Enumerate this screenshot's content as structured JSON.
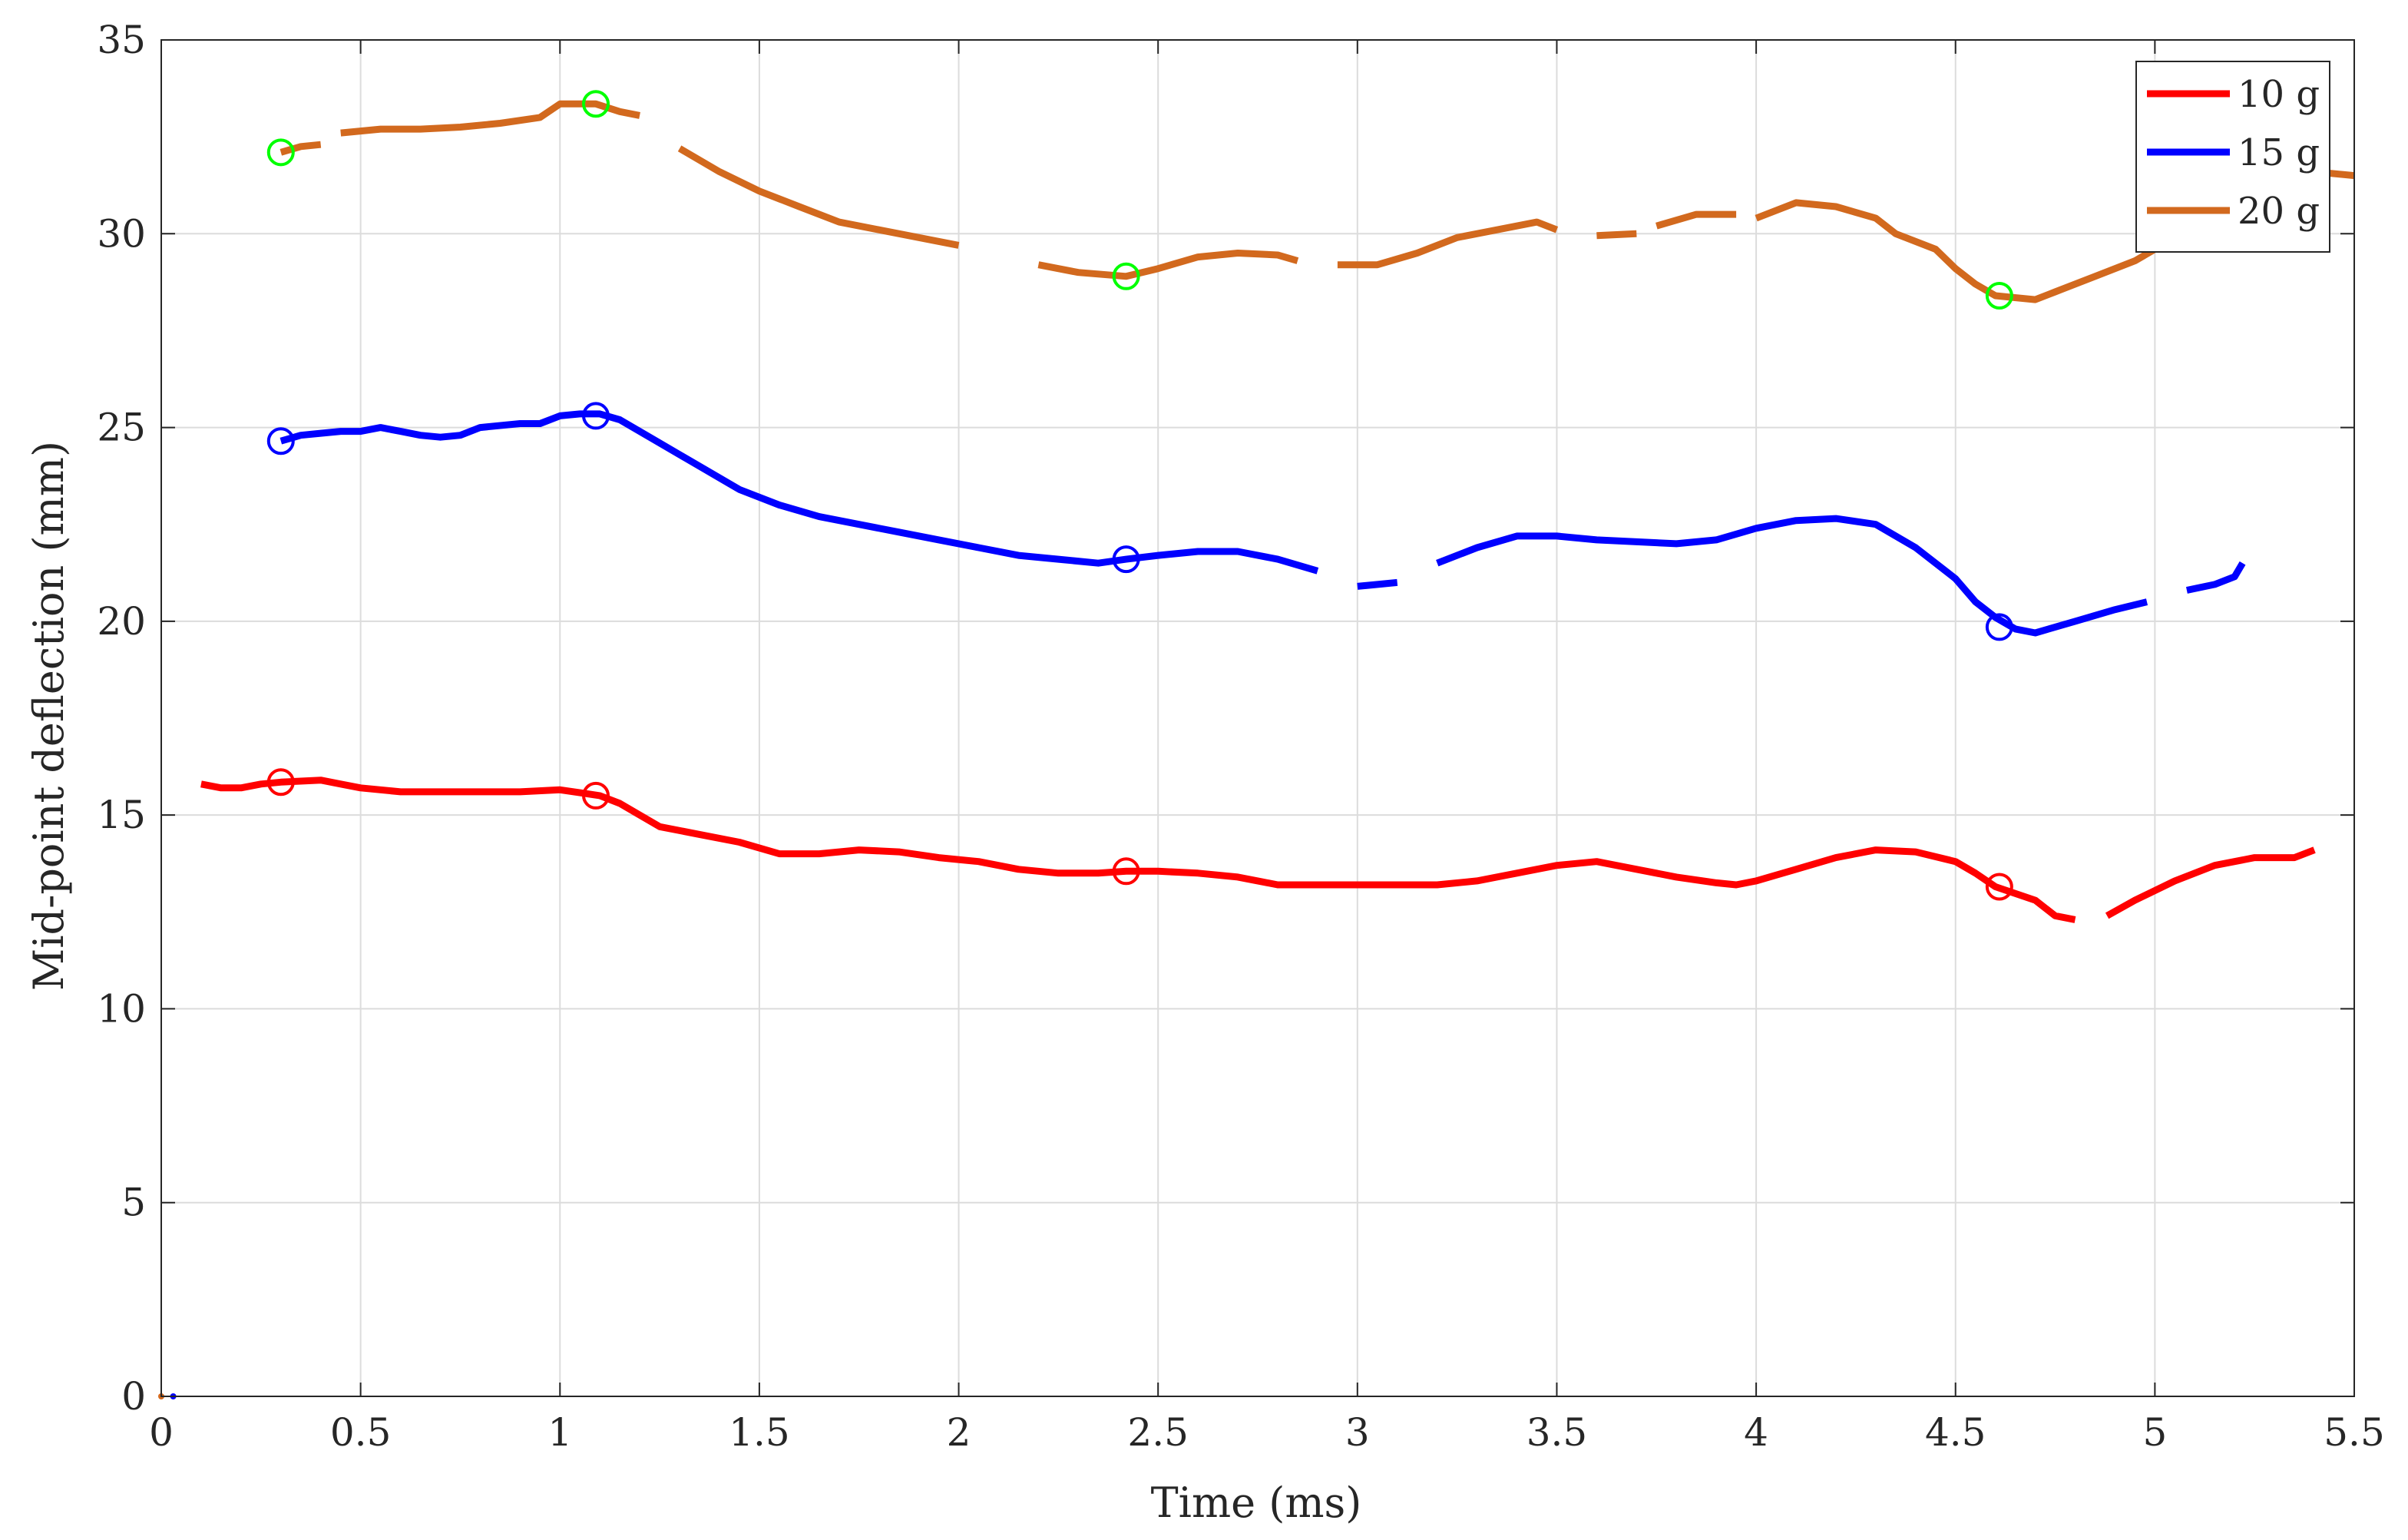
{
  "chart_data": {
    "type": "line",
    "xlabel": "Time (ms)",
    "ylabel": "Mid-point deflection (mm)",
    "xlim": [
      0,
      5.5
    ],
    "ylim": [
      0,
      35
    ],
    "xticks": [
      0,
      0.5,
      1,
      1.5,
      2,
      2.5,
      3,
      3.5,
      4,
      4.5,
      5,
      5.5
    ],
    "xtick_labels": [
      "0",
      "0.5",
      "1",
      "1.5",
      "2",
      "2.5",
      "3",
      "3.5",
      "4",
      "4.5",
      "5",
      "5.5"
    ],
    "yticks": [
      0,
      5,
      10,
      15,
      20,
      25,
      30,
      35
    ],
    "ytick_labels": [
      "0",
      "5",
      "10",
      "15",
      "20",
      "25",
      "30",
      "35"
    ],
    "grid": true,
    "legend_position": "top-right",
    "series": [
      {
        "name": "10 g",
        "color": "#ff0000",
        "segments": [
          [
            [
              0.1,
              15.8
            ],
            [
              0.15,
              15.7
            ],
            [
              0.2,
              15.7
            ],
            [
              0.25,
              15.8
            ],
            [
              0.3,
              15.85
            ],
            [
              0.4,
              15.9
            ],
            [
              0.45,
              15.8
            ],
            [
              0.5,
              15.7
            ],
            [
              0.6,
              15.6
            ],
            [
              0.7,
              15.6
            ],
            [
              0.8,
              15.6
            ],
            [
              0.9,
              15.6
            ],
            [
              1.0,
              15.65
            ],
            [
              1.1,
              15.5
            ],
            [
              1.15,
              15.3
            ],
            [
              1.2,
              15.0
            ],
            [
              1.25,
              14.7
            ],
            [
              1.35,
              14.5
            ],
            [
              1.45,
              14.3
            ],
            [
              1.55,
              14.0
            ],
            [
              1.65,
              14.0
            ],
            [
              1.75,
              14.1
            ],
            [
              1.85,
              14.05
            ],
            [
              1.95,
              13.9
            ],
            [
              2.05,
              13.8
            ],
            [
              2.15,
              13.6
            ],
            [
              2.25,
              13.5
            ],
            [
              2.35,
              13.5
            ],
            [
              2.42,
              13.55
            ],
            [
              2.5,
              13.55
            ],
            [
              2.6,
              13.5
            ],
            [
              2.7,
              13.4
            ],
            [
              2.8,
              13.2
            ],
            [
              2.9,
              13.2
            ],
            [
              3.0,
              13.2
            ],
            [
              3.1,
              13.2
            ],
            [
              3.2,
              13.2
            ],
            [
              3.3,
              13.3
            ],
            [
              3.4,
              13.5
            ],
            [
              3.5,
              13.7
            ],
            [
              3.6,
              13.8
            ],
            [
              3.7,
              13.6
            ],
            [
              3.8,
              13.4
            ],
            [
              3.9,
              13.25
            ],
            [
              3.95,
              13.2
            ],
            [
              4.0,
              13.3
            ],
            [
              4.1,
              13.6
            ],
            [
              4.2,
              13.9
            ],
            [
              4.3,
              14.1
            ],
            [
              4.4,
              14.05
            ],
            [
              4.5,
              13.8
            ],
            [
              4.55,
              13.5
            ],
            [
              4.6,
              13.15
            ],
            [
              4.7,
              12.8
            ],
            [
              4.75,
              12.4
            ],
            [
              4.8,
              12.3
            ]
          ],
          [
            [
              4.88,
              12.4
            ],
            [
              4.95,
              12.8
            ],
            [
              5.05,
              13.3
            ],
            [
              5.15,
              13.7
            ],
            [
              5.25,
              13.9
            ],
            [
              5.35,
              13.9
            ],
            [
              5.4,
              14.1
            ]
          ]
        ],
        "markers": [
          [
            0.3,
            15.85
          ],
          [
            1.09,
            15.5
          ],
          [
            2.42,
            13.55
          ],
          [
            4.61,
            13.15
          ]
        ],
        "marker_color": "#ff0000"
      },
      {
        "name": "15 g",
        "color": "#0000ff",
        "segments": [
          [
            [
              0.3,
              24.65
            ],
            [
              0.35,
              24.8
            ],
            [
              0.4,
              24.85
            ],
            [
              0.45,
              24.9
            ],
            [
              0.5,
              24.9
            ],
            [
              0.55,
              25.0
            ],
            [
              0.6,
              24.9
            ],
            [
              0.65,
              24.8
            ],
            [
              0.7,
              24.75
            ],
            [
              0.75,
              24.8
            ],
            [
              0.8,
              25.0
            ],
            [
              0.9,
              25.1
            ],
            [
              0.95,
              25.1
            ],
            [
              1.0,
              25.3
            ],
            [
              1.05,
              25.35
            ],
            [
              1.1,
              25.35
            ],
            [
              1.15,
              25.2
            ],
            [
              1.25,
              24.6
            ],
            [
              1.35,
              24.0
            ],
            [
              1.45,
              23.4
            ],
            [
              1.55,
              23.0
            ],
            [
              1.65,
              22.7
            ],
            [
              1.75,
              22.5
            ],
            [
              1.85,
              22.3
            ],
            [
              1.95,
              22.1
            ],
            [
              2.05,
              21.9
            ],
            [
              2.15,
              21.7
            ],
            [
              2.25,
              21.6
            ],
            [
              2.35,
              21.5
            ],
            [
              2.42,
              21.6
            ],
            [
              2.5,
              21.7
            ],
            [
              2.6,
              21.8
            ],
            [
              2.7,
              21.8
            ],
            [
              2.8,
              21.6
            ],
            [
              2.9,
              21.3
            ]
          ],
          [
            [
              3.0,
              20.9
            ],
            [
              3.1,
              21.0
            ]
          ],
          [
            [
              3.2,
              21.5
            ],
            [
              3.3,
              21.9
            ],
            [
              3.4,
              22.2
            ],
            [
              3.5,
              22.2
            ],
            [
              3.6,
              22.1
            ],
            [
              3.7,
              22.05
            ],
            [
              3.8,
              22.0
            ],
            [
              3.9,
              22.1
            ],
            [
              4.0,
              22.4
            ],
            [
              4.1,
              22.6
            ],
            [
              4.2,
              22.65
            ],
            [
              4.3,
              22.5
            ],
            [
              4.4,
              21.9
            ],
            [
              4.5,
              21.1
            ],
            [
              4.55,
              20.5
            ],
            [
              4.6,
              20.1
            ],
            [
              4.65,
              19.8
            ],
            [
              4.7,
              19.7
            ],
            [
              4.8,
              20.0
            ],
            [
              4.9,
              20.3
            ],
            [
              4.98,
              20.5
            ]
          ],
          [
            [
              5.08,
              20.8
            ],
            [
              5.15,
              20.95
            ],
            [
              5.2,
              21.15
            ],
            [
              5.22,
              21.5
            ]
          ]
        ],
        "markers": [
          [
            0.3,
            24.65
          ],
          [
            1.09,
            25.3
          ],
          [
            2.42,
            21.6
          ],
          [
            4.61,
            19.85
          ]
        ],
        "marker_color": "#0000ff"
      },
      {
        "name": "20 g",
        "color": "#d2691e",
        "segments": [
          [
            [
              0.3,
              32.1
            ],
            [
              0.35,
              32.25
            ],
            [
              0.4,
              32.3
            ]
          ],
          [
            [
              0.45,
              32.6
            ],
            [
              0.55,
              32.7
            ],
            [
              0.65,
              32.7
            ],
            [
              0.75,
              32.75
            ],
            [
              0.85,
              32.85
            ],
            [
              0.95,
              33.0
            ],
            [
              1.0,
              33.35
            ],
            [
              1.09,
              33.35
            ],
            [
              1.15,
              33.15
            ],
            [
              1.2,
              33.05
            ]
          ],
          [
            [
              1.3,
              32.2
            ],
            [
              1.4,
              31.6
            ],
            [
              1.5,
              31.1
            ],
            [
              1.6,
              30.7
            ],
            [
              1.7,
              30.3
            ],
            [
              1.8,
              30.1
            ],
            [
              1.9,
              29.9
            ],
            [
              2.0,
              29.7
            ]
          ],
          [
            [
              2.2,
              29.2
            ],
            [
              2.3,
              29.0
            ],
            [
              2.42,
              28.9
            ],
            [
              2.5,
              29.1
            ],
            [
              2.6,
              29.4
            ],
            [
              2.7,
              29.5
            ],
            [
              2.8,
              29.45
            ],
            [
              2.85,
              29.3
            ]
          ],
          [
            [
              2.95,
              29.2
            ],
            [
              3.05,
              29.2
            ],
            [
              3.15,
              29.5
            ],
            [
              3.25,
              29.9
            ],
            [
              3.35,
              30.1
            ],
            [
              3.45,
              30.3
            ],
            [
              3.5,
              30.1
            ]
          ],
          [
            [
              3.6,
              29.95
            ],
            [
              3.7,
              30.0
            ]
          ],
          [
            [
              3.75,
              30.2
            ],
            [
              3.85,
              30.5
            ],
            [
              3.95,
              30.5
            ]
          ],
          [
            [
              4.0,
              30.4
            ],
            [
              4.1,
              30.8
            ],
            [
              4.2,
              30.7
            ],
            [
              4.3,
              30.4
            ],
            [
              4.35,
              30.0
            ],
            [
              4.45,
              29.6
            ],
            [
              4.5,
              29.1
            ],
            [
              4.55,
              28.7
            ],
            [
              4.6,
              28.4
            ],
            [
              4.7,
              28.3
            ],
            [
              4.75,
              28.5
            ],
            [
              4.85,
              28.9
            ],
            [
              4.95,
              29.3
            ],
            [
              5.0,
              29.6
            ]
          ],
          [
            [
              5.3,
              31.8
            ],
            [
              5.4,
              31.6
            ],
            [
              5.5,
              31.5
            ]
          ]
        ],
        "markers": [
          [
            0.3,
            32.1
          ],
          [
            1.09,
            33.35
          ],
          [
            2.42,
            28.9
          ],
          [
            4.61,
            28.4
          ]
        ],
        "marker_color": "#00ff00"
      }
    ]
  }
}
